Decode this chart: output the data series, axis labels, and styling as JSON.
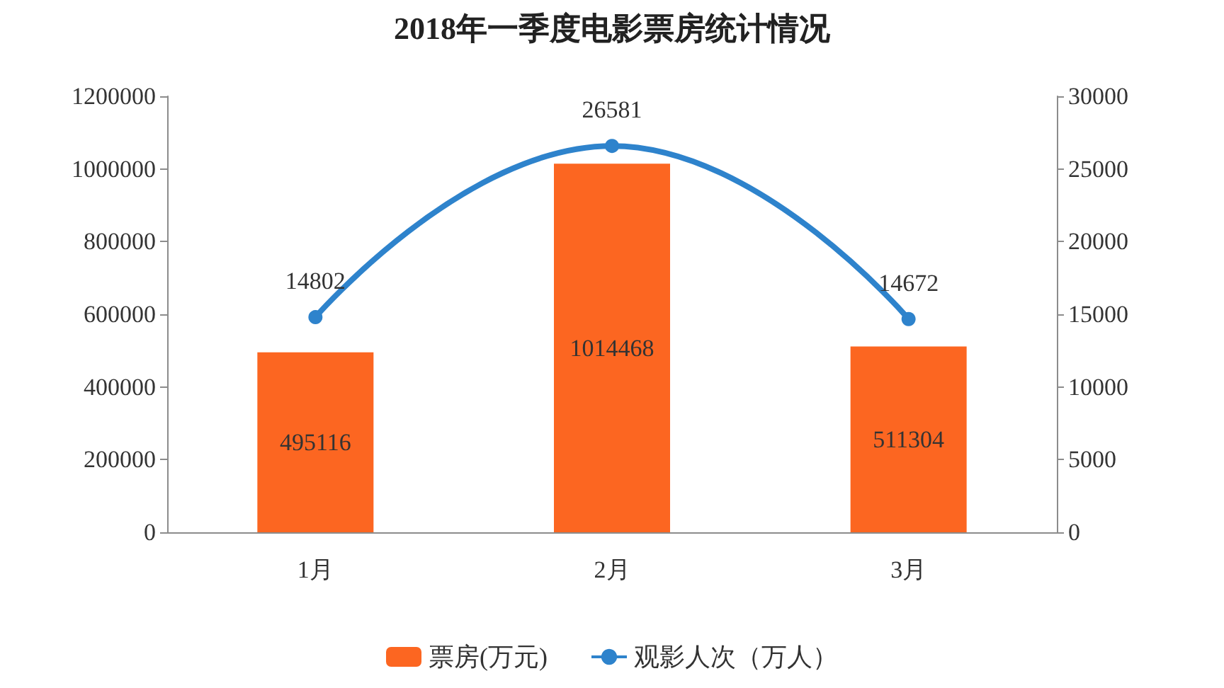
{
  "chart_data": {
    "type": "bar",
    "title": "2018年一季度电影票房统计情况",
    "categories": [
      "1月",
      "2月",
      "3月"
    ],
    "series": [
      {
        "name": "票房(万元)",
        "color": "#fc6621",
        "values": [
          495116,
          1014468,
          511304
        ]
      },
      {
        "name": "观影人次（万人）",
        "type": "line",
        "axis": "y2",
        "color": "#2e83cc",
        "values": [
          14802,
          26581,
          14672
        ],
        "marker": "circle"
      }
    ],
    "ylim": [
      0,
      1200000
    ],
    "yticks": [
      0,
      200000,
      400000,
      600000,
      800000,
      1000000,
      1200000
    ],
    "y2lim": [
      0,
      30000
    ],
    "y2ticks": [
      0,
      5000,
      10000,
      15000,
      20000,
      25000,
      30000
    ],
    "data_labels": true,
    "grid": false,
    "legend": "bottom"
  }
}
